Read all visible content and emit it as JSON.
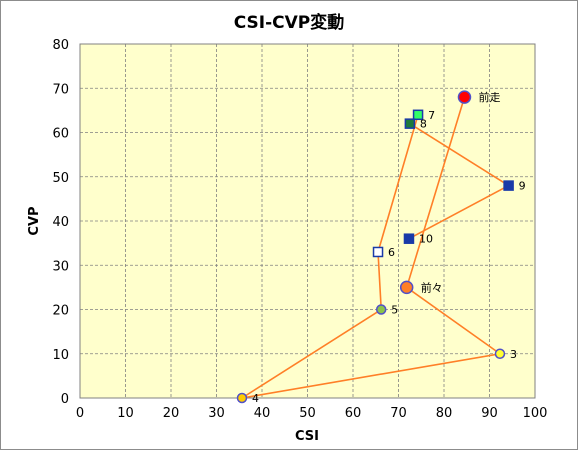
{
  "chart_data": {
    "type": "scatter",
    "title": "CSI-CVP変動",
    "xlabel": "CSI",
    "ylabel": "CVP",
    "xlim": [
      0,
      100
    ],
    "ylim": [
      0,
      80
    ],
    "xticks": [
      0,
      10,
      20,
      30,
      40,
      50,
      60,
      70,
      80,
      90,
      100
    ],
    "yticks": [
      0,
      10,
      20,
      30,
      40,
      50,
      60,
      70,
      80
    ],
    "grid": true,
    "plot_bg": "#ffffcc",
    "line_color": "#ff7f27",
    "points": [
      {
        "label": "前走",
        "x": 84.5,
        "y": 68,
        "marker": "circle",
        "fill": "#ff0000",
        "stroke": "#5050c8"
      },
      {
        "label": "前々",
        "x": 71.8,
        "y": 25,
        "marker": "circle",
        "fill": "#ff7f27",
        "stroke": "#5050c8"
      },
      {
        "label": "3",
        "x": 92.3,
        "y": 10,
        "marker": "circle",
        "fill": "#ffff33",
        "stroke": "#5050c8"
      },
      {
        "label": "4",
        "x": 35.6,
        "y": 0,
        "marker": "circle",
        "fill": "#ffcc00",
        "stroke": "#5050c8"
      },
      {
        "label": "5",
        "x": 66.2,
        "y": 20,
        "marker": "circle",
        "fill": "#8bc34a",
        "stroke": "#5050c8"
      },
      {
        "label": "6",
        "x": 65.5,
        "y": 33,
        "marker": "square",
        "fill": "#ffffff",
        "stroke": "#1a3aa8"
      },
      {
        "label": "7",
        "x": 74.3,
        "y": 64,
        "marker": "square",
        "fill": "#33ff66",
        "stroke": "#1a3aa8"
      },
      {
        "label": "8",
        "x": 72.5,
        "y": 62,
        "marker": "square",
        "fill": "#1e7a3a",
        "stroke": "#1a3aa8"
      },
      {
        "label": "9",
        "x": 94.2,
        "y": 48,
        "marker": "square",
        "fill": "#1a3aa8",
        "stroke": "#1a3aa8"
      },
      {
        "label": "10",
        "x": 72.3,
        "y": 36,
        "marker": "square",
        "fill": "#1a3aa8",
        "stroke": "#1a3aa8"
      }
    ]
  }
}
